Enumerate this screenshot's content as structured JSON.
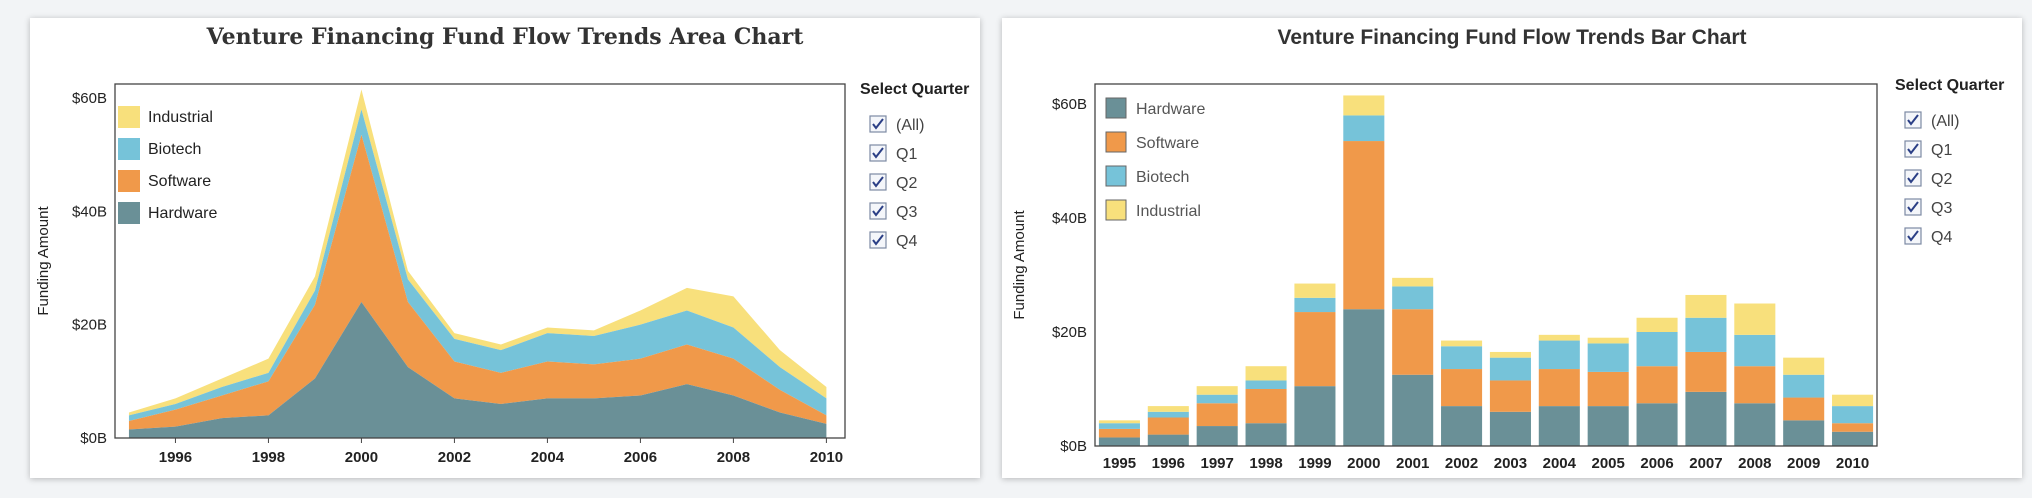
{
  "colors": {
    "hardware": "#6a9097",
    "software": "#f0994a",
    "biotech": "#76c3d9",
    "industrial": "#f8e07c",
    "axis": "#444444"
  },
  "filter": {
    "title": "Select Quarter",
    "options": [
      {
        "label": "(All)",
        "checked": true
      },
      {
        "label": "Q1",
        "checked": true
      },
      {
        "label": "Q2",
        "checked": true
      },
      {
        "label": "Q3",
        "checked": true
      },
      {
        "label": "Q4",
        "checked": true
      }
    ]
  },
  "chart_data": [
    {
      "type": "area",
      "stacked": true,
      "title": "Venture Financing Fund Flow Trends Area Chart",
      "ylabel": "Funding Amount",
      "ylim": [
        0,
        60
      ],
      "yticks": [
        "$0B",
        "$20B",
        "$40B",
        "$60B"
      ],
      "xtick_labels": [
        "1996",
        "1998",
        "2000",
        "2002",
        "2004",
        "2006",
        "2008",
        "2010"
      ],
      "x": [
        1995,
        1996,
        1997,
        1998,
        1999,
        2000,
        2001,
        2002,
        2003,
        2004,
        2005,
        2006,
        2007,
        2008,
        2009,
        2010
      ],
      "legend": [
        "Industrial",
        "Biotech",
        "Software",
        "Hardware"
      ],
      "legend_position": "top-left",
      "series": [
        {
          "name": "Hardware",
          "values": [
            1.5,
            2.0,
            3.5,
            4.0,
            10.5,
            24.0,
            12.5,
            7.0,
            6.0,
            7.0,
            7.0,
            7.5,
            9.5,
            7.5,
            4.5,
            2.5
          ]
        },
        {
          "name": "Software",
          "values": [
            1.5,
            3.0,
            4.0,
            6.0,
            13.0,
            29.5,
            11.5,
            6.5,
            5.5,
            6.5,
            6.0,
            6.5,
            7.0,
            6.5,
            4.0,
            1.5
          ]
        },
        {
          "name": "Biotech",
          "values": [
            1.0,
            1.0,
            1.5,
            1.5,
            2.5,
            4.5,
            4.0,
            4.0,
            4.0,
            5.0,
            5.0,
            6.0,
            6.0,
            5.5,
            4.0,
            3.0
          ]
        },
        {
          "name": "Industrial",
          "values": [
            0.5,
            1.0,
            1.5,
            2.5,
            2.5,
            3.5,
            1.5,
            1.0,
            1.0,
            1.0,
            1.0,
            2.5,
            4.0,
            5.5,
            3.0,
            2.0
          ]
        }
      ]
    },
    {
      "type": "bar",
      "stacked": true,
      "title": "Venture Financing Fund Flow Trends Bar Chart",
      "ylabel": "Funding Amount",
      "ylim": [
        0,
        60
      ],
      "yticks": [
        "$0B",
        "$20B",
        "$40B",
        "$60B"
      ],
      "categories": [
        "1995",
        "1996",
        "1997",
        "1998",
        "1999",
        "2000",
        "2001",
        "2002",
        "2003",
        "2004",
        "2005",
        "2006",
        "2007",
        "2008",
        "2009",
        "2010"
      ],
      "legend": [
        "Hardware",
        "Software",
        "Biotech",
        "Industrial"
      ],
      "legend_position": "top-left",
      "series": [
        {
          "name": "Hardware",
          "values": [
            1.5,
            2.0,
            3.5,
            4.0,
            10.5,
            24.0,
            12.5,
            7.0,
            6.0,
            7.0,
            7.0,
            7.5,
            9.5,
            7.5,
            4.5,
            2.5
          ]
        },
        {
          "name": "Software",
          "values": [
            1.5,
            3.0,
            4.0,
            6.0,
            13.0,
            29.5,
            11.5,
            6.5,
            5.5,
            6.5,
            6.0,
            6.5,
            7.0,
            6.5,
            4.0,
            1.5
          ]
        },
        {
          "name": "Biotech",
          "values": [
            1.0,
            1.0,
            1.5,
            1.5,
            2.5,
            4.5,
            4.0,
            4.0,
            4.0,
            5.0,
            5.0,
            6.0,
            6.0,
            5.5,
            4.0,
            3.0
          ]
        },
        {
          "name": "Industrial",
          "values": [
            0.5,
            1.0,
            1.5,
            2.5,
            2.5,
            3.5,
            1.5,
            1.0,
            1.0,
            1.0,
            1.0,
            2.5,
            4.0,
            5.5,
            3.0,
            2.0
          ]
        }
      ]
    }
  ]
}
